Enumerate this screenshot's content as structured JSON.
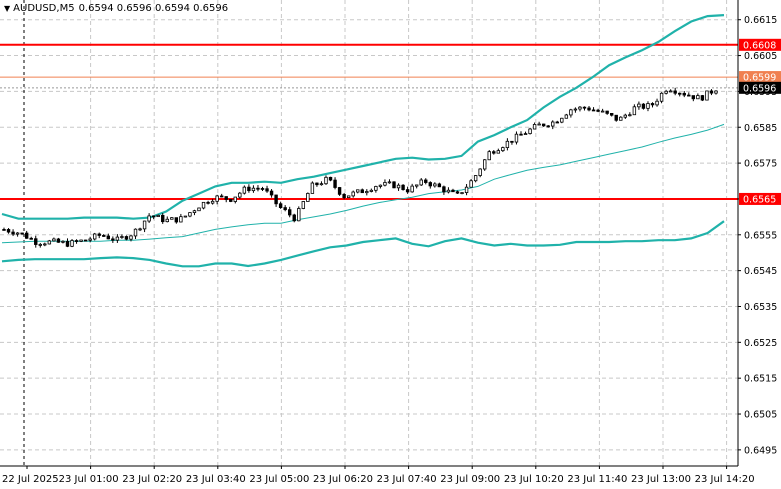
{
  "header": {
    "symbol": "AUDUSD,M5",
    "open": "0.6594",
    "high": "0.6596",
    "low": "0.6594",
    "close": "0.6596"
  },
  "colors": {
    "background": "#ffffff",
    "grid": "#c8c8c8",
    "candle": "#000000",
    "bollinger": "#20b2aa",
    "level": "#ff0000",
    "price_line": "#f08050",
    "bid_line": "#999999",
    "level_label_bg": "#ff0000",
    "price_label_bg": "#f08050",
    "bid_label_bg": "#000000"
  },
  "chart_data": {
    "type": "candlestick",
    "ylim": [
      0.64905,
      0.66205
    ],
    "y_ticks": [
      "0.6615",
      "0.6605",
      "0.6595",
      "0.6585",
      "0.6575",
      "0.6565",
      "0.6555",
      "0.6545",
      "0.6535",
      "0.6525",
      "0.6515",
      "0.6505",
      "0.6495"
    ],
    "x_ticks": [
      "22 Jul 2025",
      "23 Jul 01:00",
      "23 Jul 02:20",
      "23 Jul 03:40",
      "23 Jul 05:00",
      "23 Jul 06:20",
      "23 Jul 07:40",
      "23 Jul 09:00",
      "23 Jul 10:20",
      "23 Jul 11:40",
      "23 Jul 13:00",
      "23 Jul 14:20"
    ],
    "grid": true,
    "horizontal_levels": [
      {
        "value": 0.6608,
        "label": "0.6608",
        "style": "level"
      },
      {
        "value": 0.6599,
        "label": "0.6599",
        "style": "price"
      },
      {
        "value": 0.6596,
        "label": "0.6596",
        "style": "bid"
      },
      {
        "value": 0.6565,
        "label": "0.6565",
        "style": "level"
      }
    ],
    "period_separator_tick": "22 Jul 2025",
    "close_path": [
      0.65565,
      0.65555,
      0.6553,
      0.6553,
      0.65525,
      0.65535,
      0.6555,
      0.65535,
      0.65555,
      0.65605,
      0.6559,
      0.65595,
      0.6563,
      0.65655,
      0.6565,
      0.6568,
      0.6568,
      0.65628,
      0.65595,
      0.65685,
      0.65705,
      0.65658,
      0.6567,
      0.65688,
      0.6569,
      0.65675,
      0.657,
      0.6568,
      0.65658,
      0.65705,
      0.6578,
      0.65805,
      0.6583,
      0.65855,
      0.65865,
      0.659,
      0.65905,
      0.6589,
      0.6587,
      0.65905,
      0.6591,
      0.65962,
      0.65945,
      0.6593,
      0.65958
    ],
    "bollinger": {
      "upper": [
        0.65608,
        0.65595,
        0.65595,
        0.65595,
        0.65595,
        0.65598,
        0.65598,
        0.65598,
        0.65595,
        0.65598,
        0.65615,
        0.65645,
        0.65665,
        0.65685,
        0.65695,
        0.65695,
        0.65698,
        0.65695,
        0.65705,
        0.65712,
        0.65722,
        0.65732,
        0.65742,
        0.65752,
        0.65762,
        0.65765,
        0.6576,
        0.65762,
        0.6577,
        0.6581,
        0.65828,
        0.6585,
        0.6587,
        0.65905,
        0.65935,
        0.6596,
        0.6599,
        0.66023,
        0.66045,
        0.66065,
        0.66088,
        0.66118,
        0.66145,
        0.6616,
        0.66163
      ],
      "middle": [
        0.65528,
        0.6553,
        0.65532,
        0.65532,
        0.65532,
        0.65532,
        0.65532,
        0.65535,
        0.65535,
        0.65538,
        0.65542,
        0.65545,
        0.65555,
        0.65565,
        0.65572,
        0.65578,
        0.65582,
        0.65582,
        0.65592,
        0.656,
        0.65608,
        0.65618,
        0.6563,
        0.6564,
        0.65648,
        0.65655,
        0.65665,
        0.6567,
        0.65675,
        0.65685,
        0.65705,
        0.65718,
        0.6573,
        0.65738,
        0.65745,
        0.65755,
        0.65765,
        0.65775,
        0.65785,
        0.65795,
        0.65808,
        0.6582,
        0.6583,
        0.65842,
        0.65858
      ],
      "lower": [
        0.65476,
        0.6548,
        0.65482,
        0.65482,
        0.65482,
        0.65482,
        0.65485,
        0.65487,
        0.65485,
        0.6548,
        0.6547,
        0.65462,
        0.65462,
        0.6547,
        0.6547,
        0.65463,
        0.6547,
        0.6548,
        0.65492,
        0.65504,
        0.65515,
        0.6552,
        0.6553,
        0.65535,
        0.6554,
        0.65525,
        0.65518,
        0.65532,
        0.6554,
        0.65528,
        0.6552,
        0.65525,
        0.6552,
        0.6552,
        0.65522,
        0.6553,
        0.6553,
        0.6553,
        0.65532,
        0.65532,
        0.65535,
        0.65535,
        0.6554,
        0.65555,
        0.65588
      ]
    }
  }
}
